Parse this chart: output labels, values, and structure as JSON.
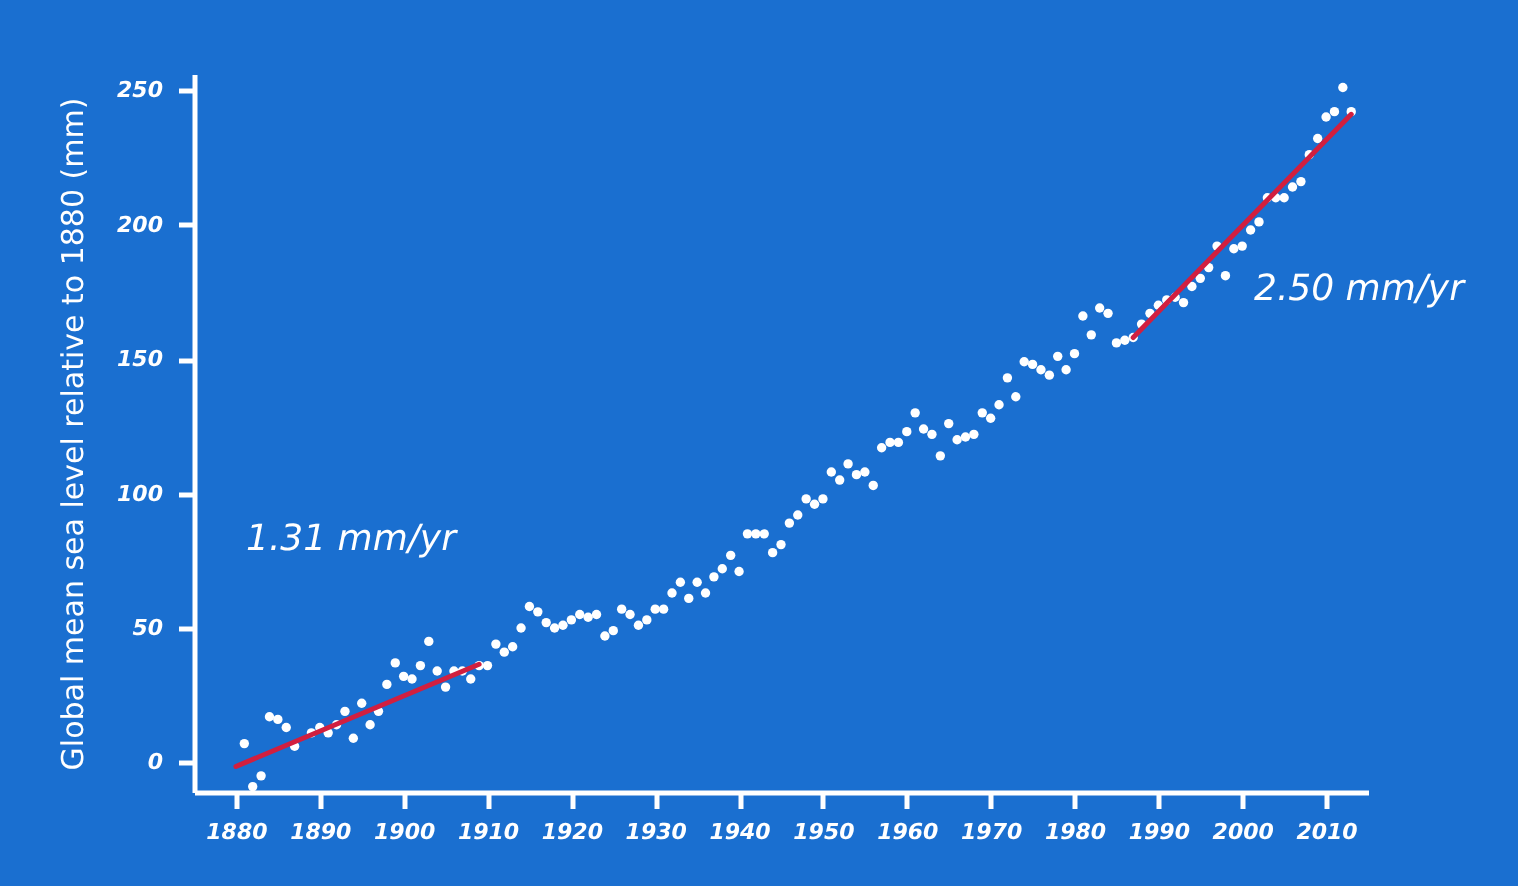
{
  "chart_data": {
    "type": "scatter",
    "ylabel": "Global mean sea level relative to 1880 (mm)",
    "xlim": [
      1875,
      2015
    ],
    "xticks": [
      1880,
      1890,
      1900,
      1910,
      1920,
      1930,
      1940,
      1950,
      1960,
      1970,
      1980,
      1990,
      2000,
      2010
    ],
    "ylim": [
      -11,
      256
    ],
    "yticks": [
      0,
      50,
      100,
      150,
      200,
      250
    ],
    "grid": false,
    "series": [
      {
        "color": "#ffffff",
        "marker": "circle",
        "x": [
          1881,
          1882,
          1883,
          1884,
          1885,
          1886,
          1887,
          1888,
          1889,
          1890,
          1891,
          1892,
          1893,
          1894,
          1895,
          1896,
          1897,
          1898,
          1899,
          1900,
          1901,
          1902,
          1903,
          1904,
          1905,
          1906,
          1907,
          1908,
          1909,
          1910,
          1911,
          1912,
          1913,
          1914,
          1915,
          1916,
          1917,
          1918,
          1919,
          1920,
          1921,
          1922,
          1923,
          1924,
          1925,
          1926,
          1927,
          1928,
          1929,
          1930,
          1931,
          1932,
          1933,
          1934,
          1935,
          1936,
          1937,
          1938,
          1939,
          1940,
          1941,
          1942,
          1943,
          1944,
          1945,
          1946,
          1947,
          1948,
          1949,
          1950,
          1951,
          1952,
          1953,
          1954,
          1955,
          1956,
          1957,
          1958,
          1959,
          1960,
          1961,
          1962,
          1963,
          1964,
          1965,
          1966,
          1967,
          1968,
          1969,
          1970,
          1971,
          1972,
          1973,
          1974,
          1975,
          1976,
          1977,
          1978,
          1979,
          1980,
          1981,
          1982,
          1983,
          1984,
          1985,
          1986,
          1987,
          1988,
          1989,
          1990,
          1991,
          1992,
          1993,
          1994,
          1995,
          1996,
          1997,
          1998,
          1999,
          2000,
          2001,
          2002,
          2003,
          2004,
          2005,
          2006,
          2007,
          2008,
          2009,
          2010,
          2011,
          2012,
          2013
        ],
        "values": [
          7,
          -9,
          -5,
          17,
          16,
          13,
          6,
          null,
          11,
          13,
          11,
          14,
          19,
          9,
          22,
          14,
          19,
          29,
          37,
          32,
          31,
          36,
          45,
          34,
          28,
          34,
          34,
          31,
          36,
          36,
          44,
          41,
          43,
          50,
          58,
          56,
          52,
          50,
          51,
          53,
          55,
          54,
          55,
          47,
          49,
          57,
          55,
          51,
          53,
          57,
          57,
          63,
          67,
          61,
          67,
          63,
          69,
          72,
          77,
          71,
          85,
          85,
          85,
          78,
          81,
          89,
          92,
          98,
          96,
          98,
          108,
          105,
          111,
          107,
          108,
          103,
          117,
          119,
          119,
          123,
          130,
          124,
          122,
          114,
          126,
          120,
          121,
          122,
          130,
          128,
          133,
          143,
          136,
          149,
          148,
          146,
          144,
          151,
          146,
          152,
          166,
          159,
          169,
          167,
          156,
          157,
          158,
          163,
          167,
          170,
          172,
          173,
          171,
          177,
          180,
          184,
          192,
          181,
          191,
          192,
          198,
          201,
          210,
          210,
          210,
          214,
          216,
          226,
          232,
          240,
          242,
          251,
          242
        ]
      },
      {
        "type": "line",
        "color": "#d11f3f",
        "x": [
          1880,
          1909
        ],
        "values": [
          -1.5,
          36.5
        ]
      },
      {
        "type": "line",
        "color": "#d11f3f",
        "x": [
          1987,
          2013
        ],
        "values": [
          158,
          241
        ]
      }
    ],
    "annotations": [
      "1.31 mm/yr",
      "2.50 mm/yr"
    ]
  }
}
